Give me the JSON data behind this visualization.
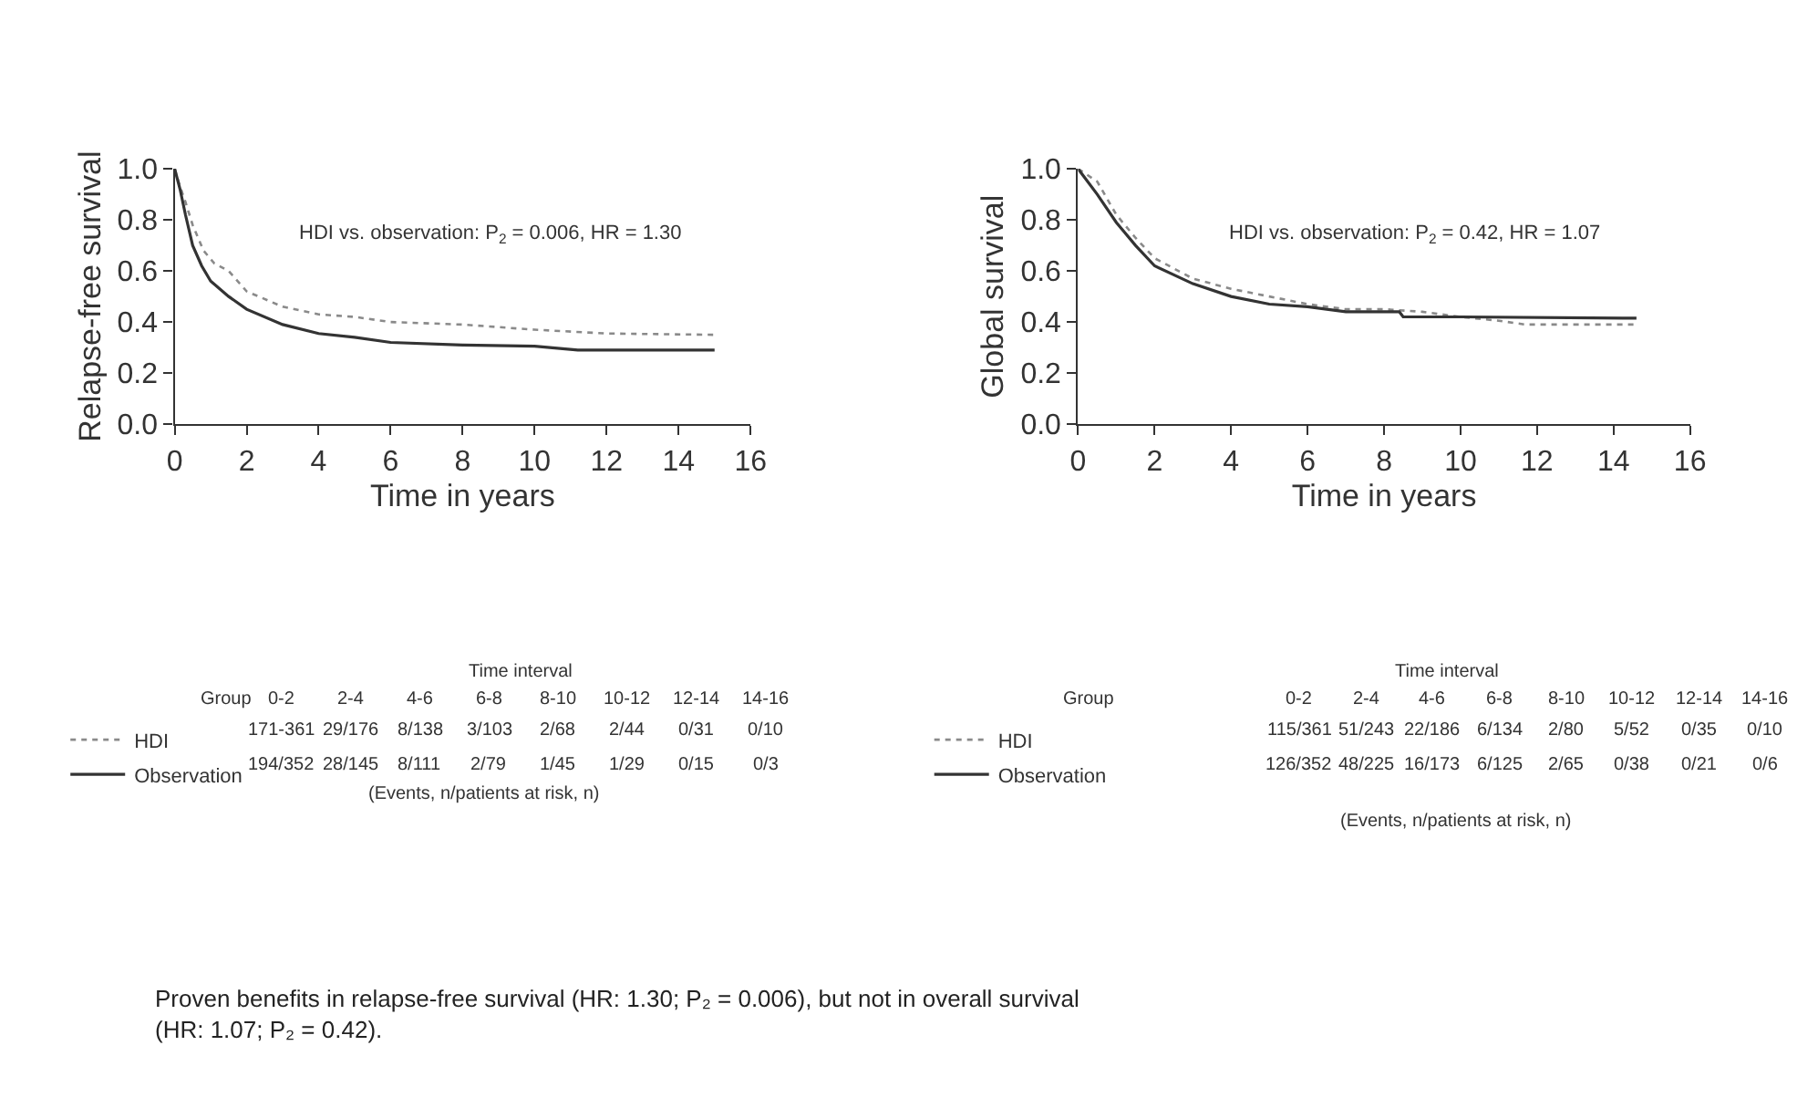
{
  "chart_data": [
    {
      "type": "line",
      "xlabel": "Time in years",
      "ylabel": "Relapse-free survival",
      "xlim": [
        0,
        16
      ],
      "xticks": [
        0,
        2,
        4,
        6,
        8,
        10,
        12,
        14,
        16
      ],
      "ylim": [
        0,
        1
      ],
      "yticks": [
        {
          "value": 0,
          "label": "0.0"
        },
        {
          "value": 0.2,
          "label": "0.2"
        },
        {
          "value": 0.4,
          "label": "0.4"
        },
        {
          "value": 0.6,
          "label": "0.6"
        },
        {
          "value": 0.8,
          "label": "0.8"
        },
        {
          "value": 1,
          "label": "1.0"
        }
      ],
      "legend": "bottom left",
      "series": [
        {
          "name": "HDI",
          "color": "#8a8a8a",
          "line_style": "dotted",
          "x": [
            0,
            0.15,
            0.3,
            0.5,
            0.8,
            1.1,
            1.5,
            2,
            3,
            4,
            5,
            6,
            8,
            9,
            10,
            12,
            15
          ],
          "values": [
            1,
            0.93,
            0.87,
            0.78,
            0.68,
            0.63,
            0.6,
            0.52,
            0.46,
            0.43,
            0.42,
            0.4,
            0.39,
            0.38,
            0.37,
            0.355,
            0.35
          ]
        },
        {
          "name": "Observation",
          "color": "#333333",
          "line_style": "solid",
          "x": [
            0,
            0.15,
            0.3,
            0.5,
            0.75,
            1,
            1.5,
            2,
            3,
            4,
            5,
            6,
            8,
            10,
            11.2,
            15
          ],
          "values": [
            1,
            0.92,
            0.82,
            0.7,
            0.62,
            0.56,
            0.5,
            0.45,
            0.39,
            0.355,
            0.34,
            0.32,
            0.31,
            0.305,
            0.29,
            0.29
          ]
        }
      ],
      "annotations": [
        "HDI vs. observation: P$_{2}$ = 0.006, HR = 1.30",
        "Time interval",
        "Group",
        "0-2",
        "2-4",
        "4-6",
        "6-8",
        "8-10",
        "10-12",
        "12-14",
        "14-16",
        "171-361",
        "29/176",
        "8/138",
        "3/103",
        "2/68",
        "2/44",
        "0/31",
        "0/10",
        "194/352",
        "28/145",
        "8/111",
        "2/79",
        "1/45",
        "1/29",
        "0/15",
        "0/3",
        "(Events, n/patients at risk, n)",
        "Proven benefits in relapse-free survival (HR: 1.30; P₂ = 0.006), but not in overall survival\n(HR: 1.07; P₂ = 0.42)."
      ]
    },
    {
      "type": "line",
      "xlabel": "Time in years",
      "ylabel": "Global survival",
      "xlim": [
        0,
        16
      ],
      "xticks": [
        0,
        2,
        4,
        6,
        8,
        10,
        12,
        14,
        16
      ],
      "ylim": [
        0,
        1
      ],
      "yticks": [
        {
          "value": 0,
          "label": "0.0"
        },
        {
          "value": 0.2,
          "label": "0.2"
        },
        {
          "value": 0.4,
          "label": "0.4"
        },
        {
          "value": 0.6,
          "label": "0.6"
        },
        {
          "value": 0.8,
          "label": "0.8"
        },
        {
          "value": 1,
          "label": "1.0"
        }
      ],
      "legend": "bottom left",
      "series": [
        {
          "name": "HDI",
          "color": "#8a8a8a",
          "line_style": "dotted",
          "x": [
            0,
            0.5,
            1,
            1.5,
            2,
            3,
            4,
            5,
            6,
            7,
            8,
            9,
            10,
            11,
            11.7,
            14.6
          ],
          "values": [
            1,
            0.95,
            0.82,
            0.73,
            0.65,
            0.57,
            0.53,
            0.5,
            0.47,
            0.45,
            0.45,
            0.44,
            0.42,
            0.405,
            0.39,
            0.39
          ]
        },
        {
          "name": "Observation",
          "color": "#333333",
          "line_style": "solid",
          "x": [
            0,
            0.5,
            1,
            1.5,
            2,
            3,
            4,
            5,
            6,
            7,
            8.4,
            8.5,
            10,
            14.6
          ],
          "values": [
            1,
            0.9,
            0.79,
            0.7,
            0.62,
            0.55,
            0.5,
            0.47,
            0.46,
            0.44,
            0.44,
            0.42,
            0.42,
            0.415
          ]
        }
      ],
      "annotations": [
        "HDI vs. observation: P$_{2}$ = 0.42, HR = 1.07",
        "Time interval",
        "Group",
        "0-2",
        "2-4",
        "4-6",
        "6-8",
        "8-10",
        "10-12",
        "12-14",
        "14-16",
        "115/361",
        "51/243",
        "22/186",
        "6/134",
        "2/80",
        "5/52",
        "0/35",
        "0/10",
        "126/352",
        "48/225",
        "16/173",
        "6/125",
        "2/65",
        "0/38",
        "0/21",
        "0/6",
        "(Events, n/patients at risk, n)"
      ]
    }
  ]
}
